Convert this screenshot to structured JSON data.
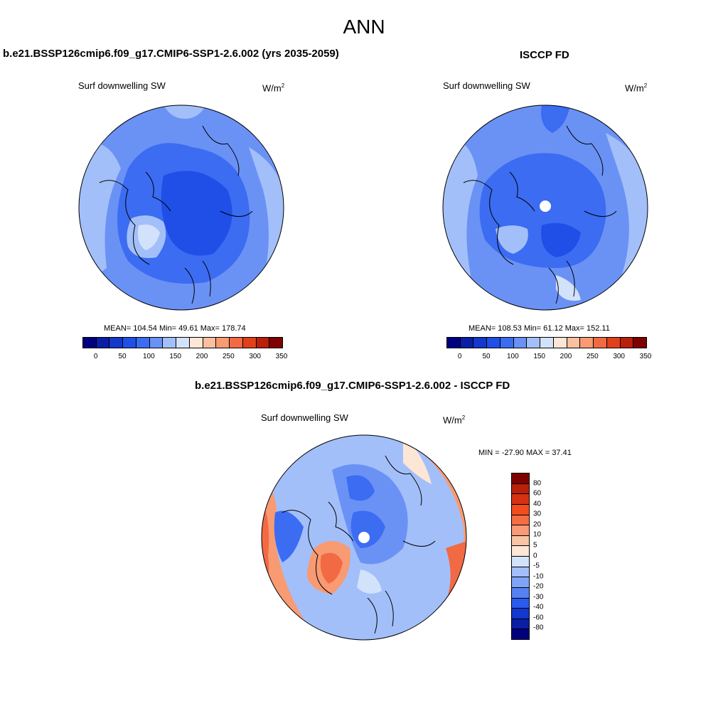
{
  "main_title": "ANN",
  "panels": [
    {
      "title": "b.e21.BSSP126cmip6.f09_g17.CMIP6-SSP1-2.6.002 (yrs 2035-2059)",
      "variable": "Surf downwelling SW",
      "units": "W/m",
      "units_exp": "2",
      "stats": "MEAN= 104.54  Min=  49.61  Max= 178.74"
    },
    {
      "title": "ISCCP FD",
      "variable": "Surf downwelling SW",
      "units": "W/m",
      "units_exp": "2",
      "stats": "MEAN= 108.53  Min=  61.12  Max= 152.11"
    },
    {
      "title": "b.e21.BSSP126cmip6.f09_g17.CMIP6-SSP1-2.6.002 - ISCCP FD",
      "variable": "Surf downwelling SW",
      "units": "W/m",
      "units_exp": "2",
      "stats": "MIN = -27.90 MAX =  37.41"
    }
  ],
  "abs_colorbar": {
    "colors": [
      "#00007f",
      "#0a1fa6",
      "#1437cc",
      "#1f4fe6",
      "#3b6cf2",
      "#6a92f5",
      "#a3bff9",
      "#d3e2fb",
      "#fde6d6",
      "#fbbfa2",
      "#f89a72",
      "#f26a43",
      "#e0411b",
      "#b91f0a",
      "#7f0000"
    ],
    "ticks": [
      "0",
      "50",
      "100",
      "150",
      "200",
      "250",
      "300",
      "350"
    ]
  },
  "diff_colorbar": {
    "colors": [
      "#7f0000",
      "#b91f0a",
      "#d63212",
      "#f24c1f",
      "#f56e43",
      "#f79a75",
      "#f9c3a5",
      "#fde6d6",
      "#d3e2fb",
      "#a3bff9",
      "#7fa4f7",
      "#5581f2",
      "#2a5bef",
      "#1437cc",
      "#0a1fa6",
      "#00007f"
    ],
    "ticks": [
      "80",
      "60",
      "40",
      "30",
      "20",
      "10",
      "5",
      "0",
      "-5",
      "-10",
      "-20",
      "-30",
      "-40",
      "-60",
      "-80"
    ]
  },
  "map_colors": {
    "ocean_light": "#a3bff9",
    "mid": "#6a92f5",
    "deep": "#3b6cf2",
    "core": "#1f4fe6",
    "pale": "#d3e2fb",
    "warm_pale": "#fde6d6",
    "warm": "#f89a72",
    "warm_strong": "#f26a43"
  }
}
